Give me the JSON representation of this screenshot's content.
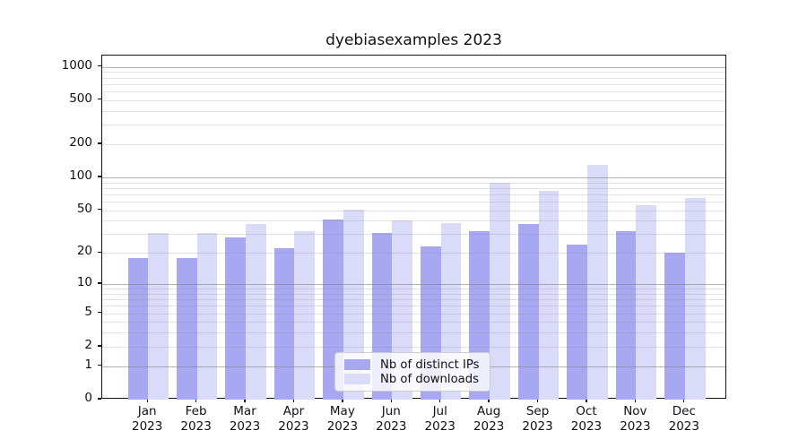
{
  "chart_data": {
    "type": "bar",
    "title": "dyebiasexamples 2023",
    "categories": [
      "Jan 2023",
      "Feb 2023",
      "Mar 2023",
      "Apr 2023",
      "May 2023",
      "Jun 2023",
      "Jul 2023",
      "Aug 2023",
      "Sep 2023",
      "Oct 2023",
      "Nov 2023",
      "Dec 2023"
    ],
    "series": [
      {
        "name": "Nb of distinct IPs",
        "color": "#a8a8f2",
        "values": [
          18,
          18,
          28,
          22,
          41,
          31,
          23,
          32,
          37,
          24,
          32,
          20
        ]
      },
      {
        "name": "Nb of downloads",
        "color": "#dadaf9",
        "values": [
          31,
          31,
          37,
          32,
          51,
          40,
          38,
          89,
          76,
          131,
          56,
          65
        ]
      }
    ],
    "y_ticks": [
      0,
      1,
      2,
      5,
      10,
      20,
      50,
      100,
      200,
      500,
      1000
    ],
    "y_scale": "log10(value+1)",
    "ylim": [
      0,
      1265
    ],
    "xlabel": "",
    "ylabel": "",
    "grid": "major and minor horizontal gridlines, drawn over bars",
    "legend_position": "inside, lower center"
  }
}
